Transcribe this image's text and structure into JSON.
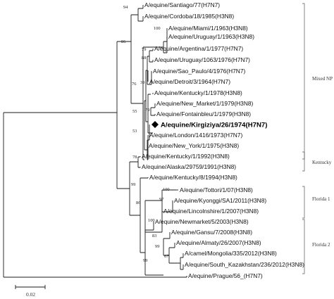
{
  "taxa": [
    "A/equine/Santiago/77(H7N7)",
    "A/equine/Cordoba/18/1985(H3N8)",
    "A/equine/Miami/1/1963(H3N8)",
    "A/equine/Uruguay/1/1963(H3N8)",
    "A/equine/Argentina/1/1977(H7N7)",
    "A/equine/Uruguay/1063/1976(H7N7)",
    "A/equine/Sao_Paulo/4/1976(H7N7)",
    "A/equine/Detroit/3/1964(H7N7)",
    "A/equine/Kentucky/1/1978(H3N8)",
    "A/equine/New_Market/1/1979(H3N8)",
    "A/equine/Fontainbleu/1/1979(H3N8)",
    "A/equine/Kirgiziya/26/1974(H7N7)",
    "A/equine/London/1416/1973(H7N7)",
    "A/equine/New_York/1/1975(H3N8)",
    "A/equine/Kentucky/1/1992(H3N8)",
    "A/equine/Alaska/29759/1991(H3N8)",
    "A/equine/Kentucky/8/1994(H3N8)",
    "A/equine/Tottori/1/07(H3N8)",
    "A/equine/Kyonggi/SA1/2011(H3N8)",
    "A/equine/Lincolnshire/1/2007(H3N8)",
    "A/equine/Newmarket/5/2003(H3N8)",
    "A/equine/Gansu/7/2008(H3N8)",
    "A/equine/Almaty/26/2007(H3N8)",
    "A/camel/Mongolia/335/2012(H3N8)",
    "A/equine/South_Kazakhstan/236/2012(H3N8)",
    "A/equine/Prague/56_(H7N7)"
  ],
  "highlighted_taxon_index": 11,
  "highlight_marker": "diamond-icon",
  "bootstrap": [
    "94",
    "86",
    "100",
    "79",
    "88",
    "76",
    "39",
    "79",
    "55",
    "53",
    "78",
    "99",
    "100",
    "97",
    "86",
    "100",
    "83",
    "99",
    "67",
    "99"
  ],
  "clades": [
    "Mixed NP",
    "Kentucky",
    "Florida 1",
    "Florida 2"
  ],
  "scale_bar": {
    "label": "0.02"
  }
}
